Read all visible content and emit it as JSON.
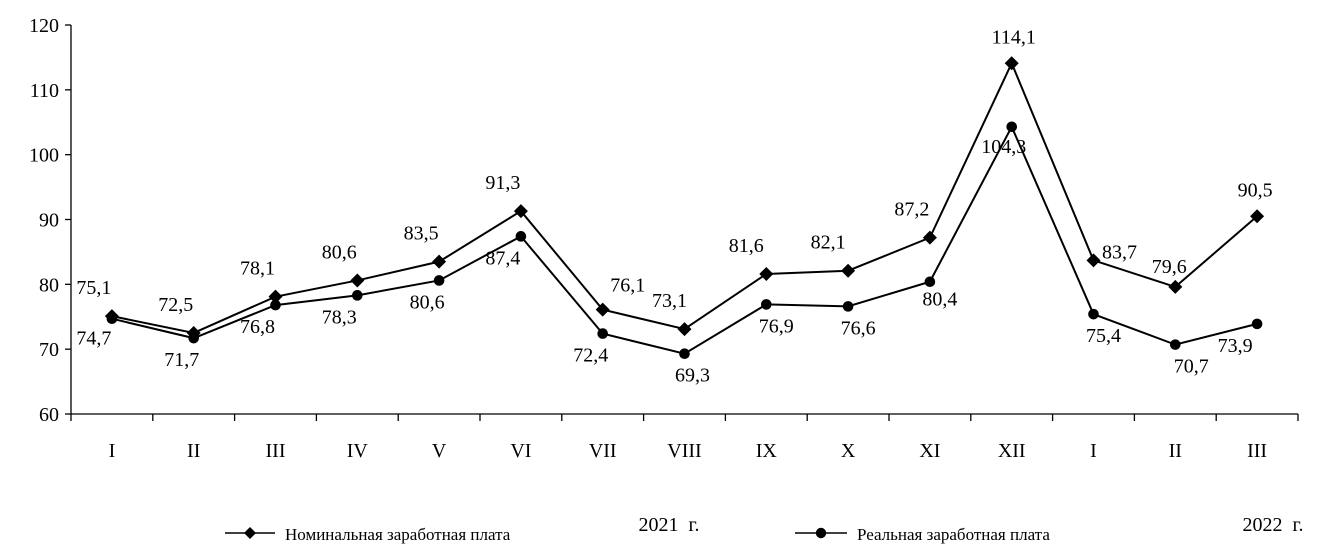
{
  "chart_data": {
    "type": "line",
    "categories": [
      "I",
      "II",
      "III",
      "IV",
      "V",
      "VI",
      "VII",
      "VIII",
      "IX",
      "X",
      "XI",
      "XII",
      "I",
      "II",
      "III"
    ],
    "year_labels": [
      "2021  г.",
      "2022  г."
    ],
    "ylim": [
      60,
      120
    ],
    "yticks": [
      60,
      70,
      80,
      90,
      100,
      110,
      120
    ],
    "grid": false,
    "legend_position": "bottom",
    "series": [
      {
        "name": "Номинальная заработная плата",
        "marker": "diamond",
        "values": [
          75.1,
          72.5,
          78.1,
          80.6,
          83.5,
          91.3,
          76.1,
          73.1,
          81.6,
          82.1,
          87.2,
          114.1,
          83.7,
          79.6,
          90.5
        ],
        "labels": [
          "75,1",
          "72,5",
          "78,1",
          "80,6",
          "83,5",
          "91,3",
          "76,1",
          "73,1",
          "81,6",
          "82,1",
          "87,2",
          "114,1",
          "83,7",
          "79,6",
          "90,5"
        ]
      },
      {
        "name": "Реальная заработная плата",
        "marker": "circle",
        "values": [
          74.7,
          71.7,
          76.8,
          78.3,
          80.6,
          87.4,
          72.4,
          69.3,
          76.9,
          76.6,
          80.4,
          104.3,
          75.4,
          70.7,
          73.9
        ],
        "labels": [
          "74,7",
          "71,7",
          "76,8",
          "78,3",
          "80,6",
          "87,4",
          "72,4",
          "69,3",
          "76,9",
          "76,6",
          "80,4",
          "104,3",
          "75,4",
          "70,7",
          "73,9"
        ]
      }
    ]
  },
  "colors": {
    "line": "#000000",
    "background": "#ffffff"
  }
}
